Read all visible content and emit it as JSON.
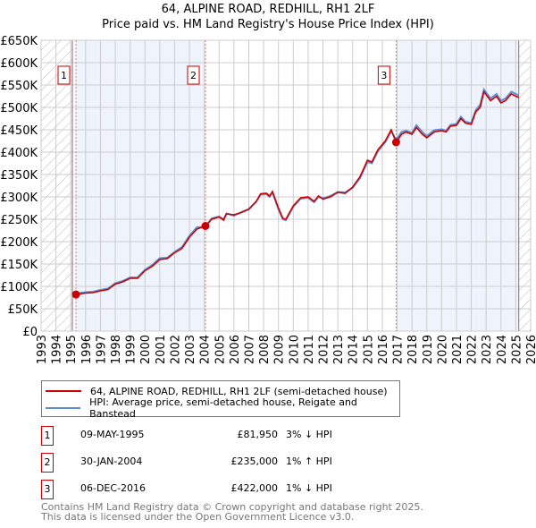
{
  "title": "64, ALPINE ROAD, REDHILL, RH1 2LF",
  "subtitle": "Price paid vs. HM Land Registry's House Price Index (HPI)",
  "chart_data": {
    "type": "line",
    "title": "64, ALPINE ROAD, REDHILL, RH1 2LF",
    "subtitle": "Price paid vs. HM Land Registry's House Price Index (HPI)",
    "xlim": [
      1993,
      2026
    ],
    "ylim": [
      0,
      650
    ],
    "x_ticks": [
      "1993",
      "1994",
      "1995",
      "1996",
      "1997",
      "1998",
      "1999",
      "2000",
      "2001",
      "2002",
      "2003",
      "2004",
      "2005",
      "2006",
      "2007",
      "2008",
      "2009",
      "2010",
      "2011",
      "2012",
      "2013",
      "2014",
      "2015",
      "2016",
      "2017",
      "2018",
      "2019",
      "2020",
      "2021",
      "2022",
      "2023",
      "2024",
      "2025",
      "2026"
    ],
    "y_ticks": [
      "£0",
      "£50K",
      "£100K",
      "£150K",
      "£200K",
      "£250K",
      "£300K",
      "£350K",
      "£400K",
      "£450K",
      "£500K",
      "£550K",
      "£600K",
      "£650K"
    ],
    "grid": true,
    "legend_position": "below",
    "colors": {
      "price": "#cc0000",
      "hpi": "#5b8fd4",
      "shade": "#eef3fc"
    },
    "x": [
      1995.35,
      1996,
      1996.5,
      1997,
      1997.5,
      1998,
      1998.5,
      1999,
      1999.5,
      2000,
      2000.5,
      2001,
      2001.5,
      2002,
      2002.5,
      2003,
      2003.5,
      2004.08,
      2004.5,
      2005,
      2005.3,
      2005.5,
      2006,
      2006.5,
      2007,
      2007.5,
      2007.8,
      2008.2,
      2008.4,
      2008.6,
      2009,
      2009.3,
      2009.5,
      2010,
      2010.5,
      2011,
      2011.4,
      2011.7,
      2012,
      2012.5,
      2013,
      2013.5,
      2014,
      2014.5,
      2015,
      2015.3,
      2015.7,
      2016.2,
      2016.6,
      2016.93,
      2017.3,
      2017.6,
      2018,
      2018.3,
      2018.7,
      2019,
      2019.5,
      2020,
      2020.3,
      2020.6,
      2021,
      2021.3,
      2021.6,
      2022,
      2022.3,
      2022.6,
      2022.85,
      2023.3,
      2023.7,
      2024,
      2024.3,
      2024.7,
      2025,
      2025.2
    ],
    "series": [
      {
        "name": "64, ALPINE ROAD, REDHILL, RH1 2LF (semi-detached house)",
        "values": [
          82,
          85,
          86,
          90,
          93,
          105,
          110,
          118,
          118,
          135,
          145,
          160,
          162,
          175,
          185,
          210,
          228,
          235,
          250,
          255,
          248,
          262,
          260,
          265,
          272,
          290,
          307,
          308,
          302,
          312,
          275,
          252,
          250,
          280,
          298,
          300,
          290,
          302,
          295,
          300,
          310,
          308,
          322,
          345,
          382,
          378,
          405,
          425,
          450,
          422,
          440,
          445,
          440,
          455,
          440,
          432,
          445,
          448,
          445,
          458,
          460,
          475,
          465,
          462,
          490,
          500,
          535,
          515,
          525,
          510,
          515,
          530,
          525,
          522
        ]
      },
      {
        "name": "HPI: Average price, semi-detached house, Reigate and Banstead",
        "values": [
          84,
          87,
          88,
          92,
          95,
          107,
          112,
          120,
          120,
          137,
          148,
          163,
          164,
          177,
          188,
          213,
          232,
          233,
          252,
          256,
          250,
          263,
          258,
          266,
          273,
          289,
          305,
          306,
          300,
          310,
          272,
          250,
          248,
          278,
          296,
          298,
          288,
          300,
          297,
          302,
          311,
          310,
          320,
          342,
          378,
          375,
          402,
          422,
          447,
          427,
          445,
          448,
          443,
          460,
          445,
          436,
          449,
          451,
          448,
          461,
          463,
          479,
          468,
          465,
          494,
          506,
          540,
          520,
          530,
          515,
          520,
          535,
          530,
          527
        ]
      }
    ],
    "sales": [
      {
        "label": "1",
        "x": 1995.35,
        "value": 81.95
      },
      {
        "label": "2",
        "x": 2004.08,
        "value": 235
      },
      {
        "label": "3",
        "x": 2016.93,
        "value": 422
      }
    ]
  },
  "legend": {
    "price": "64, ALPINE ROAD, REDHILL, RH1 2LF (semi-detached house)",
    "hpi": "HPI: Average price, semi-detached house, Reigate and Banstead"
  },
  "transactions": [
    {
      "num": "1",
      "date": "09-MAY-1995",
      "price": "£81,950",
      "delta": "3% ↓ HPI"
    },
    {
      "num": "2",
      "date": "30-JAN-2004",
      "price": "£235,000",
      "delta": "1% ↑ HPI"
    },
    {
      "num": "3",
      "date": "06-DEC-2016",
      "price": "£422,000",
      "delta": "1% ↓ HPI"
    }
  ],
  "footer": {
    "line1": "Contains HM Land Registry data © Crown copyright and database right 2025.",
    "line2": "This data is licensed under the Open Government Licence v3.0."
  }
}
